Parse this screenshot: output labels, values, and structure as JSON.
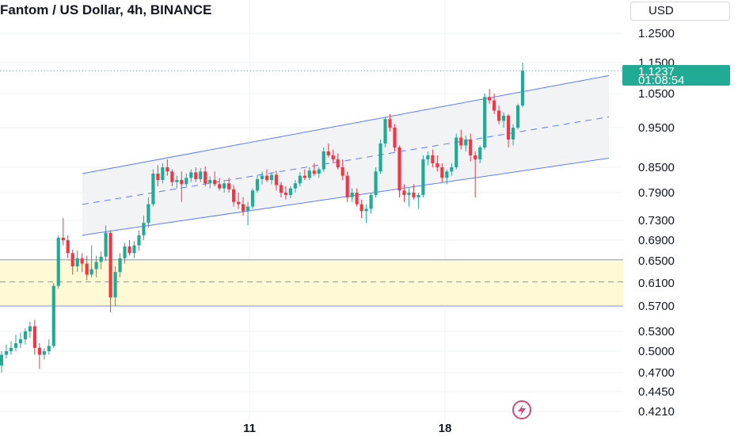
{
  "header": {
    "title": "Fantom / US Dollar, 4h, BINANCE",
    "currency_label": "USD"
  },
  "last_price": {
    "value": 1.1237,
    "label": "1.1237",
    "countdown": "01:08:54",
    "color": "#22ab94"
  },
  "colors": {
    "up": "#22ab94",
    "down": "#f23645",
    "channel_line": "#5b7cfa",
    "channel_fill": "#f2f3f5",
    "zone_fill": "#fff9d6",
    "zone_line": "#7b8ff0",
    "grid": "#eef0f3"
  },
  "icons": {
    "bottom_badge": "lightning-icon"
  },
  "chart_data": {
    "type": "candlestick",
    "title": "Fantom / US Dollar, 4h, BINANCE",
    "y_axis_ticks": [
      "1.2500",
      "1.1500",
      "1.0500",
      "0.9500",
      "0.8500",
      "0.7900",
      "0.7300",
      "0.6900",
      "0.6500",
      "0.6100",
      "0.5700",
      "0.5300",
      "0.5000",
      "0.4700",
      "0.4450",
      "0.4210"
    ],
    "x_axis_ticks": [
      "11",
      "18"
    ],
    "grid": true,
    "ohlc": [
      [
        0.48,
        0.5,
        0.47,
        0.495
      ],
      [
        0.495,
        0.51,
        0.49,
        0.5
      ],
      [
        0.5,
        0.515,
        0.495,
        0.505
      ],
      [
        0.505,
        0.525,
        0.5,
        0.512
      ],
      [
        0.512,
        0.528,
        0.505,
        0.518
      ],
      [
        0.518,
        0.535,
        0.51,
        0.53
      ],
      [
        0.53,
        0.545,
        0.52,
        0.538
      ],
      [
        0.538,
        0.548,
        0.495,
        0.505
      ],
      [
        0.505,
        0.512,
        0.475,
        0.495
      ],
      [
        0.495,
        0.505,
        0.488,
        0.5
      ],
      [
        0.5,
        0.518,
        0.495,
        0.508
      ],
      [
        0.508,
        0.61,
        0.505,
        0.605
      ],
      [
        0.605,
        0.7,
        0.6,
        0.695
      ],
      [
        0.695,
        0.735,
        0.68,
        0.69
      ],
      [
        0.69,
        0.7,
        0.655,
        0.665
      ],
      [
        0.665,
        0.672,
        0.625,
        0.64
      ],
      [
        0.64,
        0.67,
        0.63,
        0.655
      ],
      [
        0.655,
        0.665,
        0.63,
        0.645
      ],
      [
        0.645,
        0.66,
        0.615,
        0.625
      ],
      [
        0.625,
        0.68,
        0.62,
        0.635
      ],
      [
        0.635,
        0.66,
        0.62,
        0.648
      ],
      [
        0.648,
        0.668,
        0.635,
        0.658
      ],
      [
        0.658,
        0.72,
        0.65,
        0.705
      ],
      [
        0.705,
        0.71,
        0.56,
        0.585
      ],
      [
        0.585,
        0.64,
        0.57,
        0.63
      ],
      [
        0.63,
        0.665,
        0.62,
        0.655
      ],
      [
        0.655,
        0.685,
        0.645,
        0.678
      ],
      [
        0.678,
        0.69,
        0.66,
        0.665
      ],
      [
        0.665,
        0.688,
        0.655,
        0.68
      ],
      [
        0.68,
        0.71,
        0.67,
        0.7
      ],
      [
        0.7,
        0.74,
        0.69,
        0.725
      ],
      [
        0.725,
        0.78,
        0.715,
        0.765
      ],
      [
        0.765,
        0.845,
        0.76,
        0.835
      ],
      [
        0.835,
        0.855,
        0.805,
        0.82
      ],
      [
        0.82,
        0.86,
        0.812,
        0.85
      ],
      [
        0.85,
        0.87,
        0.83,
        0.84
      ],
      [
        0.84,
        0.845,
        0.805,
        0.815
      ],
      [
        0.815,
        0.83,
        0.8,
        0.82
      ],
      [
        0.82,
        0.84,
        0.77,
        0.81
      ],
      [
        0.81,
        0.835,
        0.805,
        0.825
      ],
      [
        0.825,
        0.845,
        0.815,
        0.838
      ],
      [
        0.838,
        0.85,
        0.815,
        0.822
      ],
      [
        0.822,
        0.848,
        0.815,
        0.84
      ],
      [
        0.84,
        0.852,
        0.805,
        0.812
      ],
      [
        0.812,
        0.828,
        0.8,
        0.82
      ],
      [
        0.82,
        0.84,
        0.805,
        0.81
      ],
      [
        0.81,
        0.825,
        0.795,
        0.8
      ],
      [
        0.8,
        0.82,
        0.79,
        0.812
      ],
      [
        0.812,
        0.825,
        0.79,
        0.798
      ],
      [
        0.798,
        0.808,
        0.76,
        0.77
      ],
      [
        0.77,
        0.79,
        0.755,
        0.765
      ],
      [
        0.765,
        0.78,
        0.74,
        0.75
      ],
      [
        0.75,
        0.77,
        0.72,
        0.76
      ],
      [
        0.76,
        0.8,
        0.755,
        0.795
      ],
      [
        0.795,
        0.83,
        0.79,
        0.822
      ],
      [
        0.822,
        0.84,
        0.81,
        0.83
      ],
      [
        0.83,
        0.845,
        0.815,
        0.82
      ],
      [
        0.82,
        0.838,
        0.81,
        0.832
      ],
      [
        0.832,
        0.842,
        0.795,
        0.808
      ],
      [
        0.808,
        0.815,
        0.78,
        0.79
      ],
      [
        0.79,
        0.805,
        0.775,
        0.785
      ],
      [
        0.785,
        0.805,
        0.778,
        0.8
      ],
      [
        0.8,
        0.82,
        0.79,
        0.812
      ],
      [
        0.812,
        0.838,
        0.805,
        0.83
      ],
      [
        0.83,
        0.845,
        0.82,
        0.825
      ],
      [
        0.825,
        0.85,
        0.82,
        0.842
      ],
      [
        0.842,
        0.86,
        0.83,
        0.835
      ],
      [
        0.835,
        0.85,
        0.825,
        0.845
      ],
      [
        0.845,
        0.9,
        0.84,
        0.89
      ],
      [
        0.89,
        0.91,
        0.875,
        0.88
      ],
      [
        0.88,
        0.895,
        0.86,
        0.87
      ],
      [
        0.87,
        0.885,
        0.845,
        0.85
      ],
      [
        0.85,
        0.87,
        0.82,
        0.83
      ],
      [
        0.83,
        0.84,
        0.77,
        0.78
      ],
      [
        0.78,
        0.8,
        0.77,
        0.79
      ],
      [
        0.79,
        0.8,
        0.76,
        0.765
      ],
      [
        0.765,
        0.775,
        0.735,
        0.75
      ],
      [
        0.75,
        0.765,
        0.725,
        0.755
      ],
      [
        0.755,
        0.79,
        0.745,
        0.785
      ],
      [
        0.785,
        0.85,
        0.78,
        0.84
      ],
      [
        0.84,
        0.92,
        0.835,
        0.91
      ],
      [
        0.91,
        0.98,
        0.9,
        0.975
      ],
      [
        0.975,
        0.99,
        0.94,
        0.95
      ],
      [
        0.95,
        0.96,
        0.89,
        0.9
      ],
      [
        0.9,
        0.905,
        0.78,
        0.795
      ],
      [
        0.795,
        0.81,
        0.77,
        0.785
      ],
      [
        0.785,
        0.8,
        0.76,
        0.79
      ],
      [
        0.79,
        0.81,
        0.775,
        0.78
      ],
      [
        0.78,
        0.79,
        0.755,
        0.785
      ],
      [
        0.785,
        0.88,
        0.78,
        0.87
      ],
      [
        0.87,
        0.89,
        0.855,
        0.88
      ],
      [
        0.88,
        0.895,
        0.85,
        0.86
      ],
      [
        0.86,
        0.88,
        0.84,
        0.85
      ],
      [
        0.85,
        0.86,
        0.815,
        0.825
      ],
      [
        0.825,
        0.845,
        0.81,
        0.84
      ],
      [
        0.84,
        0.86,
        0.83,
        0.85
      ],
      [
        0.85,
        0.935,
        0.845,
        0.925
      ],
      [
        0.925,
        0.945,
        0.895,
        0.905
      ],
      [
        0.905,
        0.93,
        0.89,
        0.92
      ],
      [
        0.92,
        0.935,
        0.865,
        0.88
      ],
      [
        0.88,
        0.89,
        0.78,
        0.87
      ],
      [
        0.87,
        0.905,
        0.86,
        0.9
      ],
      [
        0.9,
        1.05,
        0.895,
        1.04
      ],
      [
        1.04,
        1.065,
        1.02,
        1.03
      ],
      [
        1.03,
        1.05,
        0.99,
        1.0
      ],
      [
        1.0,
        1.015,
        0.96,
        0.97
      ],
      [
        0.97,
        0.995,
        0.95,
        0.985
      ],
      [
        0.985,
        0.99,
        0.9,
        0.92
      ],
      [
        0.92,
        0.96,
        0.905,
        0.95
      ],
      [
        0.95,
        1.02,
        0.945,
        1.015
      ],
      [
        1.015,
        1.15,
        1.01,
        1.124
      ]
    ],
    "channel": {
      "upper_start": 0.835,
      "upper_end": 1.108,
      "lower_start": 0.7,
      "lower_end": 0.873
    },
    "support_zone": {
      "top": 0.652,
      "bottom": 0.57,
      "mid": 0.612
    }
  }
}
